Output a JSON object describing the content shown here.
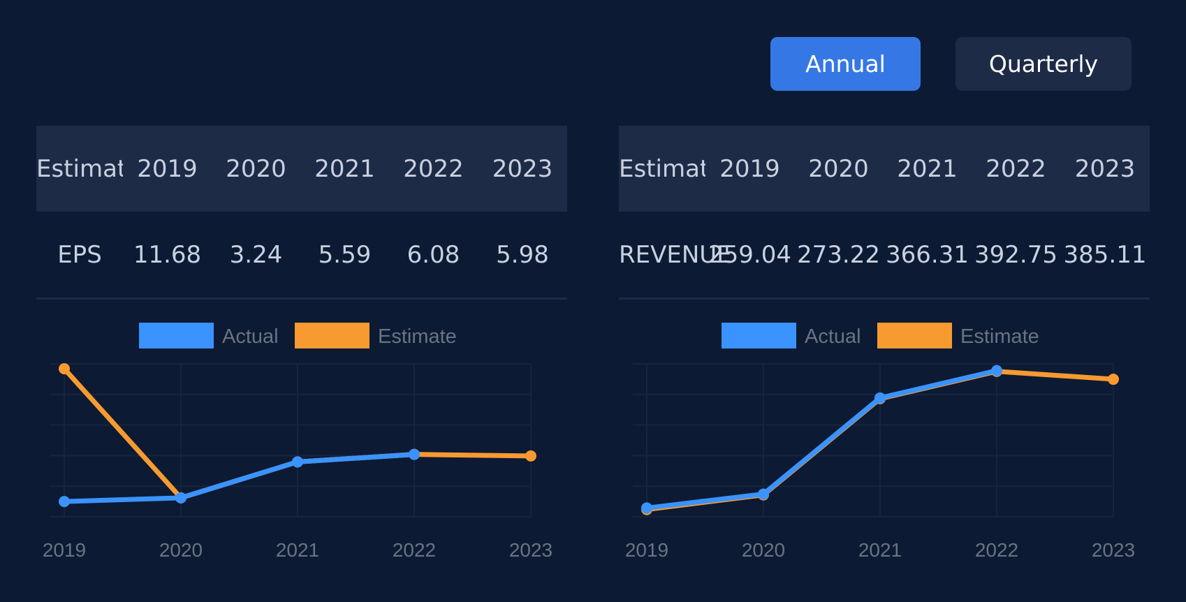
{
  "toggle": {
    "annual_label": "Annual",
    "quarterly_label": "Quarterly",
    "selected": "Annual"
  },
  "colors": {
    "actual": "#3a93ff",
    "estimate": "#f79a30",
    "accent": "#3578e5"
  },
  "tables": [
    {
      "header": [
        "Estimat",
        "2019",
        "2020",
        "2021",
        "2022",
        "2023"
      ],
      "row": [
        "EPS",
        "11.68",
        "3.24",
        "5.59",
        "6.08",
        "5.98"
      ]
    },
    {
      "header": [
        "Estimat",
        "2019",
        "2020",
        "2021",
        "2022",
        "2023"
      ],
      "row": [
        "REVENUE",
        "259.04",
        "273.22",
        "366.31",
        "392.75",
        "385.11"
      ]
    }
  ],
  "chart_data": [
    {
      "type": "line",
      "x": [
        "2019",
        "2020",
        "2021",
        "2022",
        "2023"
      ],
      "series": [
        {
          "name": "Actual",
          "values": [
            3.0,
            3.24,
            5.59,
            6.08,
            null
          ]
        },
        {
          "name": "Estimate",
          "values": [
            11.68,
            3.24,
            5.59,
            6.08,
            5.98
          ]
        }
      ],
      "ylim": [
        2.0,
        12.0
      ],
      "grid": true,
      "legend": "top-center"
    },
    {
      "type": "line",
      "x": [
        "2019",
        "2020",
        "2021",
        "2022",
        "2023"
      ],
      "series": [
        {
          "name": "Actual",
          "values": [
            260.5,
            274.0,
            367.0,
            393.5,
            null
          ]
        },
        {
          "name": "Estimate",
          "values": [
            259.04,
            273.22,
            366.31,
            392.75,
            385.11
          ]
        }
      ],
      "ylim": [
        252.0,
        400.0
      ],
      "grid": true,
      "legend": "top-center"
    }
  ]
}
